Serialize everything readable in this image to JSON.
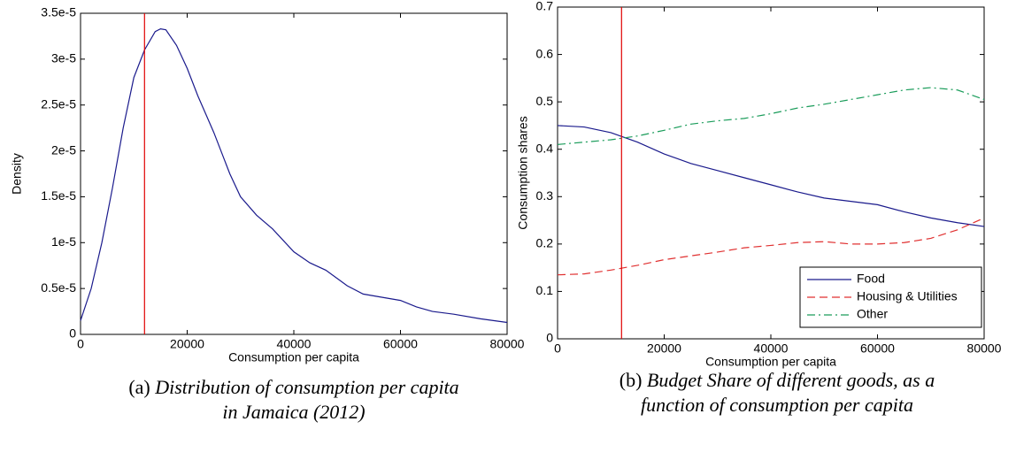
{
  "chart_data": [
    {
      "type": "line",
      "y_label": "Density",
      "x_label": "Consumption per capita",
      "caption_label": "(a)",
      "caption": [
        "Distribution of consumption per capita",
        "in Jamaica (2012)"
      ],
      "x": [
        0,
        2000,
        4000,
        6000,
        8000,
        10000,
        12000,
        14000,
        15000,
        16000,
        18000,
        20000,
        22000,
        25000,
        28000,
        30000,
        33000,
        36000,
        40000,
        43000,
        46000,
        50000,
        53000,
        56000,
        60000,
        63000,
        66000,
        70000,
        75000,
        80000
      ],
      "values": [
        1.5e-06,
        5e-06,
        1e-05,
        1.6e-05,
        2.25e-05,
        2.8e-05,
        3.1e-05,
        3.3e-05,
        3.33e-05,
        3.32e-05,
        3.15e-05,
        2.9e-05,
        2.6e-05,
        2.2e-05,
        1.75e-05,
        1.5e-05,
        1.3e-05,
        1.15e-05,
        9e-06,
        7.8e-06,
        7e-06,
        5.3e-06,
        4.4e-06,
        4.1e-06,
        3.7e-06,
        3e-06,
        2.5e-06,
        2.2e-06,
        1.7e-06,
        1.3e-06
      ],
      "color": "#1a1a8c",
      "vline": {
        "x": 12000,
        "color": "#e00000"
      },
      "xlim": [
        0,
        80000
      ],
      "xticks": [
        0,
        20000,
        40000,
        60000,
        80000
      ],
      "ylim": [
        0,
        3.5e-05
      ],
      "yticks": [
        0,
        {
          "value": 5e-06,
          "label": "0.5e-5"
        },
        {
          "value": 1e-05,
          "label": "1e-5"
        },
        {
          "value": 1.5e-05,
          "label": "1.5e-5"
        },
        {
          "value": 2e-05,
          "label": "2e-5"
        },
        {
          "value": 2.5e-05,
          "label": "2.5e-5"
        },
        {
          "value": 3e-05,
          "label": "3e-5"
        },
        {
          "value": 3.5e-05,
          "label": "3.5e-5"
        }
      ]
    },
    {
      "type": "line",
      "y_label": "Consumption shares",
      "x_label": "Consumption per capita",
      "caption_label": "(b)",
      "caption": [
        "Budget Share of different goods, as a",
        "function of consumption per capita"
      ],
      "x": [
        0,
        5000,
        10000,
        15000,
        20000,
        25000,
        30000,
        35000,
        40000,
        45000,
        50000,
        55000,
        60000,
        65000,
        70000,
        75000,
        80000
      ],
      "series": [
        {
          "name": "Food",
          "color": "#1a1a8c",
          "dash": "solid",
          "values": [
            0.45,
            0.447,
            0.435,
            0.415,
            0.39,
            0.37,
            0.355,
            0.34,
            0.325,
            0.31,
            0.297,
            0.29,
            0.283,
            0.268,
            0.255,
            0.245,
            0.237
          ]
        },
        {
          "name": "Housing & Utilities",
          "color": "#e03030",
          "dash": "dashed",
          "values": [
            0.135,
            0.137,
            0.145,
            0.155,
            0.167,
            0.175,
            0.183,
            0.192,
            0.197,
            0.203,
            0.205,
            0.2,
            0.2,
            0.203,
            0.212,
            0.23,
            0.255
          ]
        },
        {
          "name": "Other",
          "color": "#1a9c5a",
          "dash": "dashdot",
          "values": [
            0.41,
            0.415,
            0.42,
            0.428,
            0.44,
            0.453,
            0.46,
            0.465,
            0.475,
            0.487,
            0.495,
            0.505,
            0.515,
            0.525,
            0.53,
            0.525,
            0.505
          ]
        }
      ],
      "vline": {
        "x": 12000,
        "color": "#e00000"
      },
      "legend": "lower right",
      "xlim": [
        0,
        80000
      ],
      "xticks": [
        0,
        20000,
        40000,
        60000,
        80000
      ],
      "ylim": [
        0,
        0.7
      ],
      "yticks": [
        0,
        0.1,
        0.2,
        0.3,
        0.4,
        0.5,
        0.6,
        0.7
      ]
    }
  ]
}
